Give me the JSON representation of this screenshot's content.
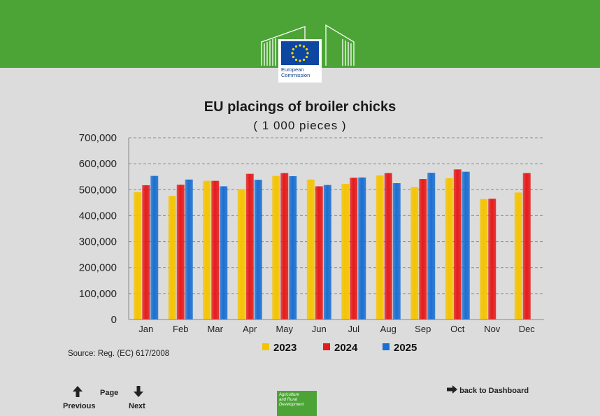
{
  "header": {
    "logo_line1": "European",
    "logo_line2": "Commission"
  },
  "chart_data": {
    "type": "bar",
    "title": "EU placings of broiler chicks",
    "subtitle": "( 1 000 pieces )",
    "categories": [
      "Jan",
      "Feb",
      "Mar",
      "Apr",
      "May",
      "Jun",
      "Jul",
      "Aug",
      "Sep",
      "Oct",
      "Nov",
      "Dec"
    ],
    "ylim": [
      0,
      700000
    ],
    "yticks": [
      "0",
      "100,000",
      "200,000",
      "300,000",
      "400,000",
      "500,000",
      "600,000",
      "700,000"
    ],
    "grid": true,
    "legend_position": "bottom",
    "series": [
      {
        "name": "2023",
        "color": "#f5c400",
        "values": [
          490000,
          476000,
          534000,
          502000,
          553000,
          539000,
          522000,
          555000,
          510000,
          544000,
          464000,
          489000
        ]
      },
      {
        "name": "2024",
        "color": "#e61b1b",
        "values": [
          517000,
          519000,
          534000,
          561000,
          564000,
          513000,
          546000,
          564000,
          541000,
          578000,
          465000,
          564000
        ]
      },
      {
        "name": "2025",
        "color": "#1a6fd1",
        "values": [
          553000,
          539000,
          513000,
          538000,
          552000,
          518000,
          547000,
          525000,
          565000,
          569000,
          null,
          null
        ]
      }
    ]
  },
  "footer": {
    "source": "Source: Reg. (EC) 617/2008",
    "previous": "Previous",
    "page": "Page",
    "next": "Next",
    "dashboard": "back to Dashboard",
    "badge_line1": "Agriculture",
    "badge_line2": "and Rural",
    "badge_line3": "Development"
  }
}
